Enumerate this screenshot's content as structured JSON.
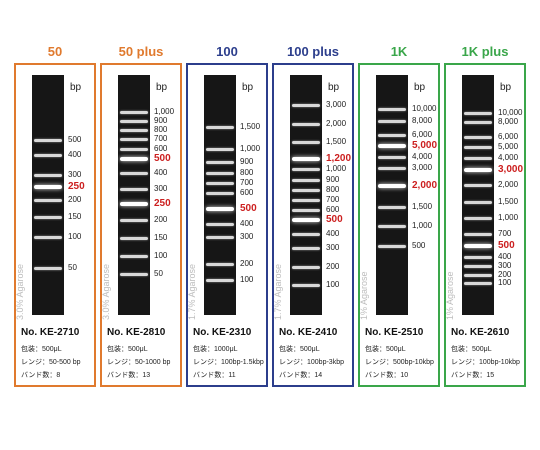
{
  "products": [
    {
      "title": "50",
      "color": "#e07a2e",
      "agarose": "3.0% Agarose",
      "bp_label": "bp",
      "catalog": "No. KE-2710",
      "packaging": "包装：500μL",
      "range": "レンジ：50-500 bp",
      "bands_count": "バンド数：8",
      "markers": [
        {
          "label": "500",
          "red": false
        },
        {
          "label": "400",
          "red": false
        },
        {
          "label": "300",
          "red": false
        },
        {
          "label": "250",
          "red": true
        },
        {
          "label": "200",
          "red": false
        },
        {
          "label": "150",
          "red": false
        },
        {
          "label": "100",
          "red": false
        },
        {
          "label": "50",
          "red": false
        }
      ]
    },
    {
      "title": "50 plus",
      "color": "#e07a2e",
      "agarose": "3.0% Agarose",
      "bp_label": "bp",
      "catalog": "No. KE-2810",
      "packaging": "包装：500μL",
      "range": "レンジ：50-1000 bp",
      "bands_count": "バンド数：13",
      "markers": [
        {
          "label": "1,000",
          "red": false
        },
        {
          "label": "900",
          "red": false
        },
        {
          "label": "800",
          "red": false
        },
        {
          "label": "700",
          "red": false
        },
        {
          "label": "600",
          "red": false
        },
        {
          "label": "500",
          "red": true
        },
        {
          "label": "400",
          "red": false
        },
        {
          "label": "300",
          "red": false
        },
        {
          "label": "250",
          "red": true
        },
        {
          "label": "200",
          "red": false
        },
        {
          "label": "150",
          "red": false
        },
        {
          "label": "100",
          "red": false
        },
        {
          "label": "50",
          "red": false
        }
      ]
    },
    {
      "title": "100",
      "color": "#2c3e8c",
      "agarose": "1.7% Agarose",
      "bp_label": "bp",
      "catalog": "No. KE-2310",
      "packaging": "包装：1000μL",
      "range": "レンジ：100bp-1.5kbp",
      "bands_count": "バンド数：11",
      "markers": [
        {
          "label": "1,500",
          "red": false
        },
        {
          "label": "1,000",
          "red": false
        },
        {
          "label": "900",
          "red": false
        },
        {
          "label": "800",
          "red": false
        },
        {
          "label": "700",
          "red": false
        },
        {
          "label": "600",
          "red": false
        },
        {
          "label": "500",
          "red": true
        },
        {
          "label": "400",
          "red": false
        },
        {
          "label": "300",
          "red": false
        },
        {
          "label": "200",
          "red": false
        },
        {
          "label": "100",
          "red": false
        }
      ]
    },
    {
      "title": "100 plus",
      "color": "#2c3e8c",
      "agarose": "1.7% Agarose",
      "bp_label": "bp",
      "catalog": "No. KE-2410",
      "packaging": "包装：500μL",
      "range": "レンジ：100bp-3kbp",
      "bands_count": "バンド数：14",
      "markers": [
        {
          "label": "3,000",
          "red": false
        },
        {
          "label": "2,000",
          "red": false
        },
        {
          "label": "1,500",
          "red": false
        },
        {
          "label": "1,200",
          "red": true
        },
        {
          "label": "1,000",
          "red": false
        },
        {
          "label": "900",
          "red": false
        },
        {
          "label": "800",
          "red": false
        },
        {
          "label": "700",
          "red": false
        },
        {
          "label": "600",
          "red": false
        },
        {
          "label": "500",
          "red": true
        },
        {
          "label": "400",
          "red": false
        },
        {
          "label": "300",
          "red": false
        },
        {
          "label": "200",
          "red": false
        },
        {
          "label": "100",
          "red": false
        }
      ]
    },
    {
      "title": "1K",
      "color": "#3aa64a",
      "agarose": "1% Agarose",
      "bp_label": "bp",
      "catalog": "No. KE-2510",
      "packaging": "包装：500μL",
      "range": "レンジ：500bp-10kbp",
      "bands_count": "バンド数：10",
      "markers": [
        {
          "label": "10,000",
          "red": false
        },
        {
          "label": "8,000",
          "red": false
        },
        {
          "label": "6,000",
          "red": false
        },
        {
          "label": "5,000",
          "red": true
        },
        {
          "label": "4,000",
          "red": false
        },
        {
          "label": "3,000",
          "red": false
        },
        {
          "label": "2,000",
          "red": true
        },
        {
          "label": "1,500",
          "red": false
        },
        {
          "label": "1,000",
          "red": false
        },
        {
          "label": "500",
          "red": false
        }
      ]
    },
    {
      "title": "1K plus",
      "color": "#3aa64a",
      "agarose": "1% Agarose",
      "bp_label": "bp",
      "catalog": "No. KE-2610",
      "packaging": "包装：500μL",
      "range": "レンジ：100bp-10kbp",
      "bands_count": "バンド数：15",
      "markers": [
        {
          "label": "10,000",
          "red": false
        },
        {
          "label": "8,000",
          "red": false
        },
        {
          "label": "6,000",
          "red": false
        },
        {
          "label": "5,000",
          "red": false
        },
        {
          "label": "4,000",
          "red": false
        },
        {
          "label": "3,000",
          "red": true
        },
        {
          "label": "2,000",
          "red": false
        },
        {
          "label": "1,500",
          "red": false
        },
        {
          "label": "1,000",
          "red": false
        },
        {
          "label": "700",
          "red": false
        },
        {
          "label": "500",
          "red": true
        },
        {
          "label": "400",
          "red": false
        },
        {
          "label": "300",
          "red": false
        },
        {
          "label": "200",
          "red": false
        },
        {
          "label": "100",
          "red": false
        }
      ]
    }
  ]
}
